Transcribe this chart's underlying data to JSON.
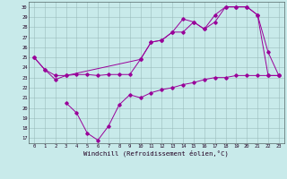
{
  "xlabel": "Windchill (Refroidissement éolien,°C)",
  "bg_color": "#c8eaea",
  "line_color": "#990099",
  "grid_color": "#9bbcbc",
  "ylim": [
    16.5,
    30.5
  ],
  "xlim": [
    -0.5,
    23.5
  ],
  "yticks": [
    17,
    18,
    19,
    20,
    21,
    22,
    23,
    24,
    25,
    26,
    27,
    28,
    29,
    30
  ],
  "xticks": [
    0,
    1,
    2,
    3,
    4,
    5,
    6,
    7,
    8,
    9,
    10,
    11,
    12,
    13,
    14,
    15,
    16,
    17,
    18,
    19,
    20,
    21,
    22,
    23
  ],
  "series1_x": [
    0,
    1,
    2,
    3,
    4,
    5,
    6,
    7,
    8,
    9,
    10,
    11,
    12,
    13,
    14,
    15,
    16,
    17,
    18,
    19,
    20,
    21,
    22,
    23
  ],
  "series1_y": [
    25.0,
    23.8,
    22.8,
    23.2,
    23.3,
    23.3,
    23.2,
    23.3,
    23.3,
    23.3,
    24.8,
    26.5,
    26.7,
    27.5,
    27.5,
    28.5,
    27.8,
    28.5,
    30.0,
    30.0,
    30.0,
    29.2,
    23.2,
    23.2
  ],
  "series2_x": [
    3,
    4,
    5,
    6,
    7,
    8,
    9,
    10,
    11,
    12,
    13,
    14,
    15,
    16,
    17,
    18,
    19,
    20,
    21,
    22,
    23
  ],
  "series2_y": [
    20.5,
    19.5,
    17.5,
    16.8,
    18.2,
    20.3,
    21.3,
    21.0,
    21.5,
    21.8,
    22.0,
    22.3,
    22.5,
    22.8,
    23.0,
    23.0,
    23.2,
    23.2,
    23.2,
    23.2,
    23.2
  ],
  "series3_x": [
    0,
    1,
    2,
    3,
    10,
    11,
    12,
    13,
    14,
    15,
    16,
    17,
    18,
    19,
    20,
    21,
    22,
    23
  ],
  "series3_y": [
    25.0,
    23.8,
    23.2,
    23.2,
    24.8,
    26.5,
    26.7,
    27.5,
    28.8,
    28.5,
    27.8,
    29.2,
    30.0,
    30.0,
    30.0,
    29.2,
    25.5,
    23.2
  ]
}
